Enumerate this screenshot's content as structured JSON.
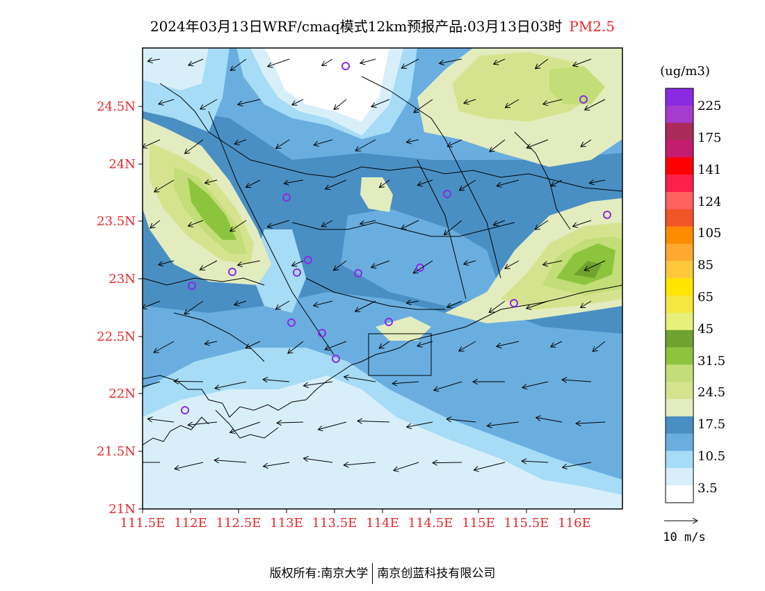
{
  "title": {
    "main": "2024年03月13日WRF/cmaq模式12km预报产品:03月13日03时",
    "pollutant": "PM2.5"
  },
  "axes": {
    "lat_labels": [
      "24.5N",
      "24N",
      "23.5N",
      "23N",
      "22.5N",
      "22N",
      "21.5N",
      "21N"
    ],
    "lon_labels": [
      "111.5E",
      "112E",
      "112.5E",
      "113E",
      "113.5E",
      "114E",
      "114.5E",
      "115E",
      "115.5E",
      "116E"
    ],
    "label_color": "#e8262a"
  },
  "legend": {
    "unit": "(ug/m3)",
    "labels": [
      "225",
      "175",
      "141",
      "124",
      "105",
      "85",
      "65",
      "45",
      "31.5",
      "24.5",
      "17.5",
      "10.5",
      "3.5"
    ],
    "colors_top_to_bottom": [
      "#8a2be2",
      "#a63bd0",
      "#aa2a5a",
      "#c41c6e",
      "#ff0000",
      "#ff1f4a",
      "#ff6060",
      "#f0552a",
      "#ff8c00",
      "#ffa832",
      "#ffc83c",
      "#ffe600",
      "#f6e640",
      "#e6f07a",
      "#6fa22e",
      "#8cc43e",
      "#c3dd78",
      "#d6e38e",
      "#e3ecbf",
      "#4a8fc4",
      "#6aaee0",
      "#a6dcf5",
      "#d8effa",
      "#ffffff"
    ],
    "wind_scale_label": "10 m/s"
  },
  "colors": {
    "sea_pale": "#d8effa",
    "light_blue": "#a6dcf5",
    "mid_blue": "#6aaee0",
    "dark_blue": "#4a8fc4",
    "pale_green": "#e3ecbf",
    "light_green": "#c3dd78",
    "green": "#8cc43e",
    "dark_green": "#6fa22e"
  },
  "footer": {
    "left": "版权所有:南京大学",
    "right": "南京创蓝科技有限公司"
  }
}
